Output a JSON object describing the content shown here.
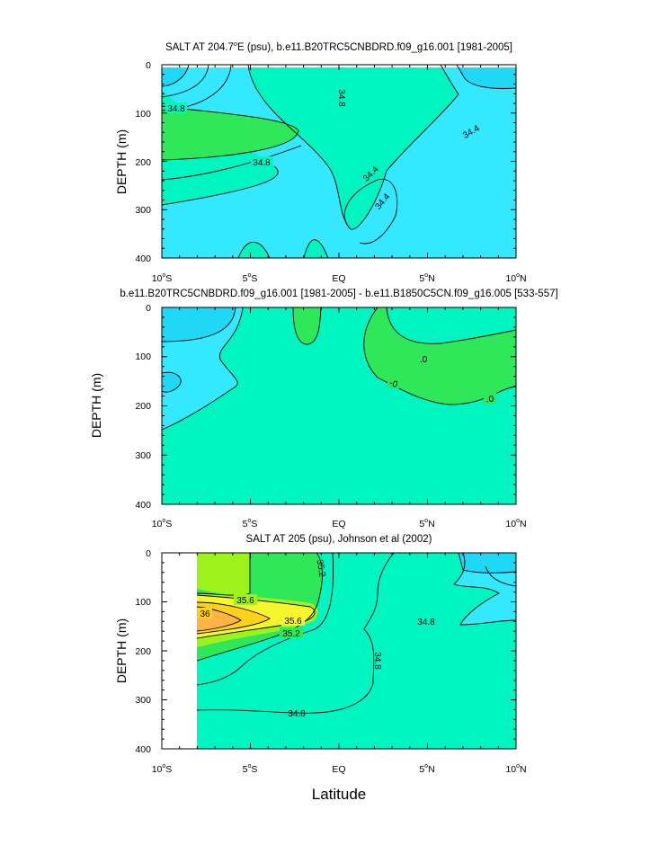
{
  "figure": {
    "xlabel": "Latitude"
  },
  "chart_data": [
    {
      "type": "contour",
      "title": "SALT AT 204.7°E (psu), b.e11.B20TRC5CNBDRD.f09_g16.001 [1981-2005]",
      "title_parts": [
        "SALT AT 204.7",
        "o",
        "E (psu), b.e11.B20TRC5CNBDRD.f09_g16.001 [1981-2005]"
      ],
      "ylabel": "DEPTH (m)",
      "xlim": [
        -10,
        10
      ],
      "ylim": [
        400,
        0
      ],
      "x_ticks": [
        {
          "num": "10",
          "dir": "S"
        },
        {
          "num": "5",
          "dir": "S"
        },
        {
          "num": "EQ",
          "dir": ""
        },
        {
          "num": "5",
          "dir": "N"
        },
        {
          "num": "10",
          "dir": "N"
        }
      ],
      "y_ticks": [
        "0",
        "100",
        "200",
        "300",
        "400"
      ],
      "contour_labels": [
        "34.8",
        "34.8",
        "34.8",
        "34.4",
        "34.4",
        "34.4"
      ],
      "colors": {
        "base": "#33e8ff",
        "light": "#1fd8f5",
        "mid": "#00f5c0",
        "high": "#2ee85a"
      }
    },
    {
      "type": "contour",
      "title": "b.e11.B20TRC5CNBDRD.f09_g16.001 [1981-2005] - b.e11.B1850C5CN.f09_g16.005 [533-557]",
      "ylabel": "DEPTH (m)",
      "xlim": [
        -10,
        10
      ],
      "ylim": [
        400,
        0
      ],
      "x_ticks": [
        {
          "num": "10",
          "dir": "S"
        },
        {
          "num": "5",
          "dir": "S"
        },
        {
          "num": "EQ",
          "dir": ""
        },
        {
          "num": "5",
          "dir": "N"
        },
        {
          "num": "10",
          "dir": "N"
        }
      ],
      "y_ticks": [
        "0",
        "100",
        "200",
        "300",
        "400"
      ],
      "contour_labels": [
        ".0",
        "-0",
        ".0"
      ],
      "colors": {
        "base": "#00f5c0",
        "light": "#33e8ff",
        "dark": "#1fd8f5",
        "high": "#2ee85a"
      }
    },
    {
      "type": "contour",
      "title": "SALT AT 205 (psu), Johnson et al (2002)",
      "ylabel": "DEPTH (m)",
      "xlim": [
        -10,
        10
      ],
      "ylim": [
        400,
        0
      ],
      "x_ticks": [
        {
          "num": "10",
          "dir": "S"
        },
        {
          "num": "5",
          "dir": "S"
        },
        {
          "num": "EQ",
          "dir": ""
        },
        {
          "num": "5",
          "dir": "N"
        },
        {
          "num": "10",
          "dir": "N"
        }
      ],
      "y_ticks": [
        "0",
        "100",
        "200",
        "300",
        "400"
      ],
      "contour_labels": [
        "35.2",
        "35.6",
        "36",
        "35.6",
        "35.2",
        "34.8",
        "34.8",
        "34.8"
      ],
      "colors": {
        "base": "#00f5c0",
        "light": "#33e8ff",
        "dark": "#1fd8f5",
        "green": "#2ee85a",
        "lime": "#9cf21a",
        "yellow": "#f7f52e",
        "gold": "#ffd21a",
        "orange": "#ffb347"
      }
    }
  ]
}
